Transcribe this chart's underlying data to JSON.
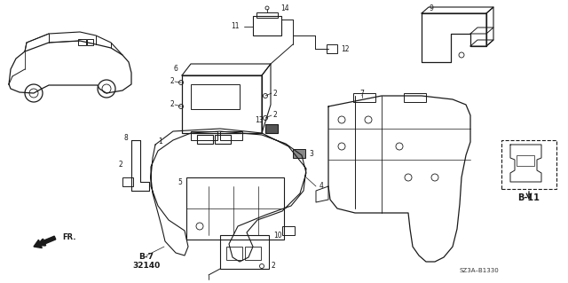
{
  "bg_color": "#ffffff",
  "line_color": "#1a1a1a",
  "fig_width": 6.4,
  "fig_height": 3.19,
  "dpi": 100,
  "labels": {
    "b11": "B-11",
    "b7": "B-7",
    "part32140": "32140",
    "ref": "SZ3A–B1330",
    "fr": "FR."
  }
}
